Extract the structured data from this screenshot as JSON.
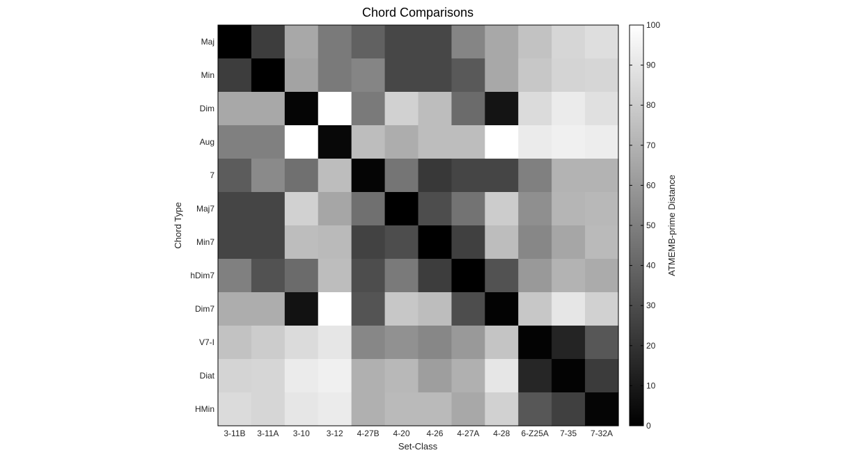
{
  "chart_data": {
    "type": "heatmap",
    "title": "Chord Comparisons",
    "xlabel": "Set-Class",
    "ylabel": "Chord Type",
    "colorbar_label": "ATMEMB-prime Distance",
    "colorbar_range": [
      0,
      100
    ],
    "colorbar_ticks": [
      0,
      10,
      20,
      30,
      40,
      50,
      60,
      70,
      80,
      90,
      100
    ],
    "colormap": "gray",
    "x_categories": [
      "3-11B",
      "3-11A",
      "3-10",
      "3-12",
      "4-27B",
      "4-20",
      "4-26",
      "4-27A",
      "4-28",
      "6-Z25A",
      "7-35",
      "7-32A"
    ],
    "y_categories": [
      "Maj",
      "Min",
      "Dim",
      "Aug",
      "7",
      "Maj7",
      "Min7",
      "hDim7",
      "Dim7",
      "V7-I",
      "Diat",
      "HMin"
    ],
    "values": [
      [
        0,
        24,
        66,
        48,
        38,
        28,
        28,
        52,
        66,
        76,
        84,
        87
      ],
      [
        24,
        0,
        64,
        48,
        52,
        28,
        28,
        35,
        66,
        78,
        83,
        84
      ],
      [
        66,
        66,
        2,
        100,
        48,
        82,
        74,
        42,
        8,
        86,
        92,
        88
      ],
      [
        50,
        50,
        100,
        3,
        74,
        68,
        74,
        74,
        100,
        92,
        94,
        93
      ],
      [
        36,
        54,
        44,
        74,
        2,
        46,
        22,
        27,
        27,
        50,
        70,
        70
      ],
      [
        27,
        27,
        82,
        65,
        44,
        0,
        30,
        45,
        80,
        56,
        71,
        72
      ],
      [
        27,
        27,
        74,
        73,
        26,
        30,
        0,
        25,
        74,
        53,
        65,
        73
      ],
      [
        50,
        32,
        42,
        74,
        30,
        48,
        24,
        0,
        32,
        60,
        70,
        67
      ],
      [
        68,
        68,
        7,
        100,
        33,
        78,
        74,
        30,
        1,
        78,
        90,
        82
      ],
      [
        76,
        80,
        86,
        90,
        53,
        57,
        53,
        60,
        77,
        1,
        14,
        34
      ],
      [
        83,
        84,
        92,
        94,
        69,
        72,
        62,
        69,
        90,
        15,
        1,
        23
      ],
      [
        86,
        84,
        90,
        92,
        69,
        73,
        73,
        66,
        82,
        34,
        25,
        2
      ]
    ]
  }
}
